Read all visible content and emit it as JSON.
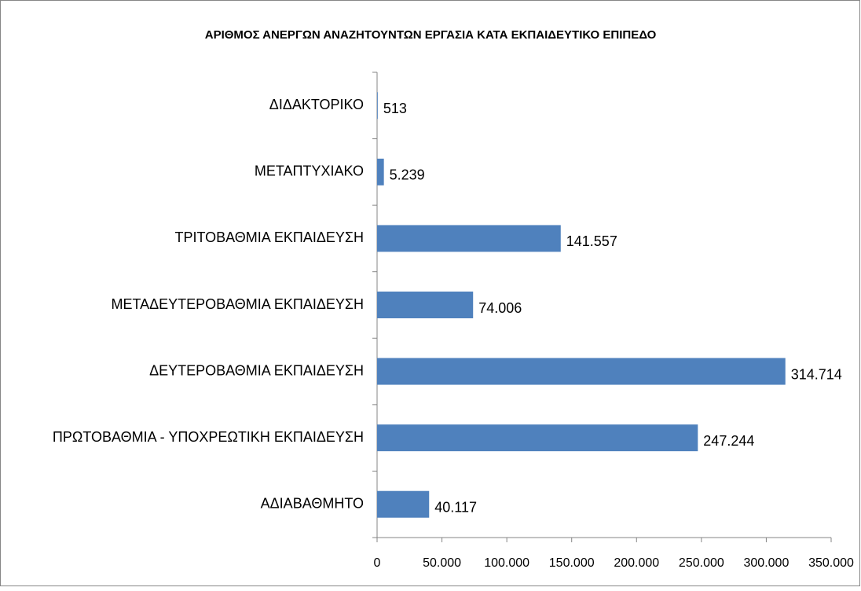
{
  "chart_data": {
    "type": "hbar",
    "title": "ΑΡΙΘΜΟΣ ΑΝΕΡΓΩΝ ΑΝΑΖΗΤΟΥΝΤΩΝ ΕΡΓΑΣΙΑ ΚΑΤΑ ΕΚΠΑΙΔΕΥΤΙΚΟ ΕΠΙΠΕΔΟ",
    "categories": [
      "ΔΙΔΑΚΤΟΡΙΚΟ",
      "ΜΕΤΑΠΤΥΧΙΑΚΟ",
      "ΤΡΙΤΟΒΑΘΜΙΑ ΕΚΠΑΙΔΕΥΣΗ",
      "ΜΕΤΑΔΕΥΤΕΡΟΒΑΘΜΙΑ ΕΚΠΑΙΔΕΥΣΗ",
      "ΔΕΥΤΕΡΟΒΑΘΜΙΑ ΕΚΠΑΙΔΕΥΣΗ",
      "ΠΡΩΤΟΒΑΘΜΙΑ - ΥΠΟΧΡΕΩΤΙΚΗ ΕΚΠΑΙΔΕΥΣΗ",
      "ΑΔΙΑΒΑΘΜΗΤΟ"
    ],
    "values": [
      513,
      5239,
      141557,
      74006,
      314714,
      247244,
      40117
    ],
    "value_labels": [
      "513",
      "5.239",
      "141.557",
      "74.006",
      "314.714",
      "247.244",
      "40.117"
    ],
    "color": "#4f81bd",
    "xlim": [
      0,
      350000
    ],
    "xticks": [
      0,
      {
        "value": 50000,
        "label": "50.000"
      },
      {
        "value": 100000,
        "label": "100.000"
      },
      {
        "value": 150000,
        "label": "150.000"
      },
      {
        "value": 200000,
        "label": "200.000"
      },
      {
        "value": 250000,
        "label": "250.000"
      },
      {
        "value": 300000,
        "label": "300.000"
      },
      {
        "value": 350000,
        "label": "350.000"
      }
    ],
    "grid": false
  }
}
